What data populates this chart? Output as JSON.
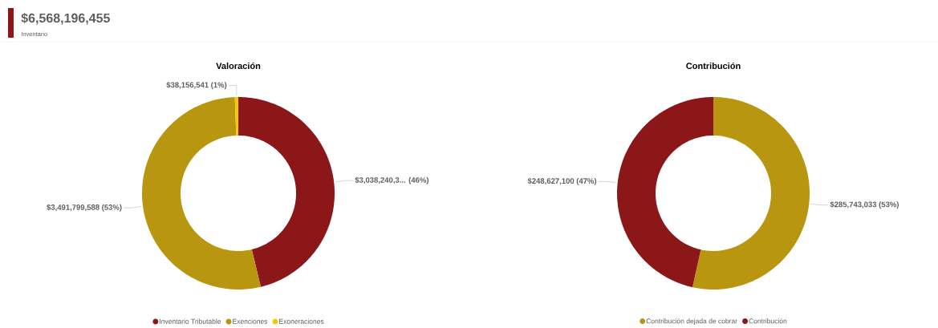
{
  "chart_data": [
    {
      "type": "other",
      "title": "$6,568,196,455",
      "subtitle": "Inventario"
    },
    {
      "type": "donut",
      "title": "Valoración",
      "categories": [
        "Inventario Tributable",
        "Exenciones",
        "Exoneraciones"
      ],
      "values": [
        3038240326,
        3491799588,
        38156541
      ],
      "colors": [
        "#8b1719",
        "#b8960f",
        "#f2c80f"
      ],
      "value_labels": [
        "$3,038,240,3... (46%)",
        "$3,491,799,588 (53%)",
        "$38,156,541 (1%)"
      ],
      "legend": "bottom"
    },
    {
      "type": "donut",
      "title": "Contribución",
      "categories": [
        "Contribución dejada de cobrar",
        "Contribución"
      ],
      "values": [
        285743033,
        248627100
      ],
      "colors": [
        "#b8960f",
        "#8b1719"
      ],
      "value_labels": [
        "$285,743,033 (53%)",
        "$248,627,100 (47%)"
      ],
      "legend": "bottom"
    }
  ]
}
